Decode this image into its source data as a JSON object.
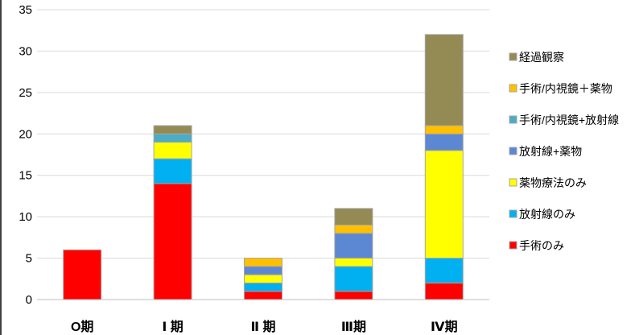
{
  "chart_data": {
    "type": "bar",
    "stacked": true,
    "categories": [
      "O期",
      "Ⅰ 期",
      "Ⅱ 期",
      "Ⅲ期",
      "Ⅳ期"
    ],
    "series": [
      {
        "name": "手術のみ",
        "color": "#FF0000",
        "values": [
          6,
          14,
          1,
          1,
          2
        ]
      },
      {
        "name": "放射線のみ",
        "color": "#00B0F0",
        "values": [
          0,
          3,
          1,
          3,
          3
        ]
      },
      {
        "name": "薬物療法のみ",
        "color": "#FFFF00",
        "values": [
          0,
          2,
          1,
          1,
          13
        ]
      },
      {
        "name": "放射線+薬物",
        "color": "#5B87D3",
        "values": [
          0,
          0,
          1,
          3,
          2
        ]
      },
      {
        "name": "手術/内視鏡+放射線",
        "color": "#4BACC6",
        "values": [
          0,
          1,
          0,
          0,
          0
        ]
      },
      {
        "name": "手術/内視鏡＋薬物",
        "color": "#FFC000",
        "values": [
          0,
          0,
          1,
          1,
          1
        ]
      },
      {
        "name": "経過観察",
        "color": "#948A54",
        "values": [
          0,
          1,
          0,
          2,
          11
        ]
      }
    ],
    "ylim": [
      0,
      35
    ],
    "yticks": [
      0,
      5,
      10,
      15,
      20,
      25,
      30,
      35
    ],
    "grid": true,
    "legend_position": "right"
  }
}
